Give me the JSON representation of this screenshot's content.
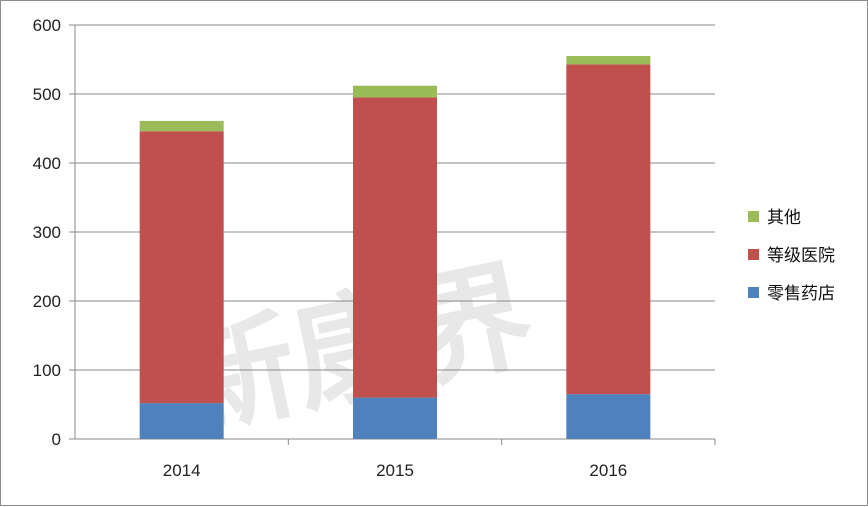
{
  "chart_data": {
    "type": "bar",
    "stacked": true,
    "categories": [
      "2014",
      "2015",
      "2016"
    ],
    "series": [
      {
        "name": "零售药店",
        "values": [
          52,
          60,
          65
        ],
        "color": "#4f81bd"
      },
      {
        "name": "等级医院",
        "values": [
          394,
          435,
          478
        ],
        "color": "#c0504d"
      },
      {
        "name": "其他",
        "values": [
          15,
          17,
          12
        ],
        "color": "#9bbb59"
      }
    ],
    "ylim": [
      0,
      600
    ],
    "yticks": [
      "0",
      "100",
      "200",
      "300",
      "400",
      "500",
      "600"
    ],
    "grid": true,
    "legend_position": "right",
    "title": "",
    "xlabel": "",
    "ylabel": ""
  }
}
